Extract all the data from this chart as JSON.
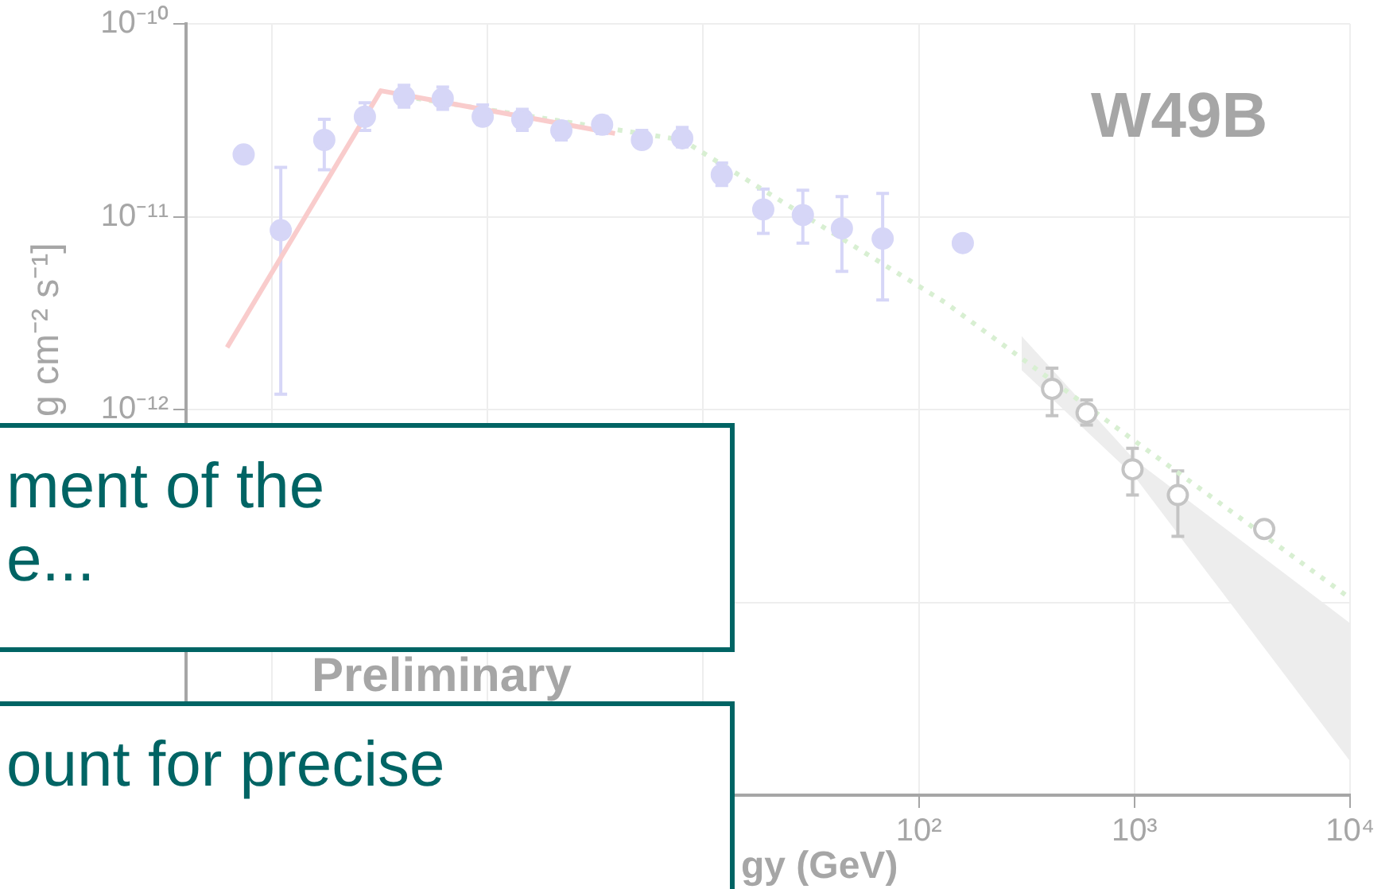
{
  "chart_data": {
    "type": "scatter",
    "xlabel": "gy (GeV)",
    "ylabel": "g cm⁻² s⁻¹]",
    "log": "xy",
    "xlim": [
      0.04,
      10000
    ],
    "ylim": [
      1e-14,
      1e-10
    ],
    "xticks": [
      {
        "value": 0.1,
        "label": null
      },
      {
        "value": 1,
        "label": null
      },
      {
        "value": 10,
        "label": null
      },
      {
        "value": 100,
        "label": "10²"
      },
      {
        "value": 1000,
        "label": "10³"
      },
      {
        "value": 10000,
        "label": "10⁴"
      }
    ],
    "yticks": [
      {
        "value": 1e-14,
        "label": null
      },
      {
        "value": 1e-13,
        "label": null
      },
      {
        "value": 1e-12,
        "label": "10⁻¹²"
      },
      {
        "value": 1e-11,
        "label": "10⁻¹¹"
      },
      {
        "value": 1e-10,
        "label": "10⁻¹⁰"
      }
    ],
    "grid": true,
    "legend": false,
    "annotations": [
      "W49B",
      "Preliminary",
      "ment of the",
      "e...",
      "ount for precise"
    ],
    "series": [
      {
        "marker": "circle",
        "color": "#d6d6f7",
        "x": [
          0.074,
          0.11,
          0.175,
          0.27,
          0.41,
          0.62,
          0.95,
          1.45,
          2.2,
          3.4,
          5.2,
          8.0,
          12.2,
          19,
          29,
          44,
          68,
          160
        ],
        "values": [
          2.1e-11,
          8.5e-12,
          2.5e-11,
          3.3e-11,
          4.2e-11,
          4.1e-11,
          3.3e-11,
          3.2e-11,
          2.8e-11,
          3e-11,
          2.5e-11,
          2.55e-11,
          1.65e-11,
          1.09e-11,
          1.02e-11,
          8.7e-12,
          7.7e-12,
          7.3e-12
        ],
        "errors": [
          null,
          [
            1.2e-12,
            1.8e-11
          ],
          [
            1.75e-11,
            3.2e-11
          ],
          [
            2.8e-11,
            3.9e-11
          ],
          [
            3.7e-11,
            4.8e-11
          ],
          [
            3.6e-11,
            4.7e-11
          ],
          [
            3e-11,
            3.8e-11
          ],
          [
            2.8e-11,
            3.6e-11
          ],
          [
            2.5e-11,
            3.1e-11
          ],
          [
            2.7e-11,
            3.3e-11
          ],
          [
            2.3e-11,
            2.8e-11
          ],
          [
            2.3e-11,
            2.9e-11
          ],
          [
            1.45e-11,
            1.9e-11
          ],
          [
            8.2e-12,
            1.39e-11
          ],
          [
            7.3e-12,
            1.37e-11
          ],
          [
            5.2e-12,
            1.27e-11
          ],
          [
            3.7e-12,
            1.32e-11
          ],
          null
        ]
      },
      {
        "marker": "circle",
        "color": "#c4c4c4",
        "x": [
          415,
          600,
          980,
          1590,
          4000
        ],
        "values": [
          1.28e-12,
          9.6e-13,
          4.9e-13,
          3.6e-13,
          2.4e-13
        ],
        "errors": [
          [
            9.3e-13,
            1.64e-12
          ],
          [
            8.3e-13,
            1.12e-12
          ],
          [
            3.6e-13,
            6.3e-13
          ],
          [
            2.2e-13,
            4.8e-13
          ],
          null
        ]
      },
      {
        "type": "line",
        "marker": "none",
        "line_style": "solid",
        "color": "#f9cccc",
        "x": [
          0.062,
          0.32,
          3.9
        ],
        "values": [
          2.1e-12,
          4.5e-11,
          2.7e-11
        ]
      },
      {
        "type": "line",
        "marker": "none",
        "line_style": "dotted",
        "color": "#d8efd2",
        "x": [
          0.41,
          8,
          132,
          10000
        ],
        "values": [
          4.2e-11,
          2.5e-11,
          3.6e-12,
          1.05e-13
        ]
      },
      {
        "type": "line",
        "marker": "none",
        "color": "#ededed",
        "x": [
          300,
          1000,
          10000
        ],
        "values": [
          null,
          null,
          null
        ],
        "lower": [
          1.6e-12,
          4.5e-13,
          1.5e-14
        ],
        "upper": [
          2.4e-12,
          5.5e-13,
          7.8e-14
        ]
      }
    ]
  }
}
